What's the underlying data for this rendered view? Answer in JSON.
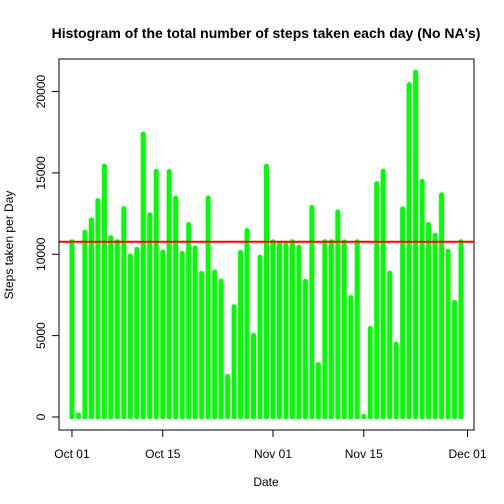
{
  "chart_data": {
    "type": "bar",
    "title": "Histogram of the total number of steps taken each day (No NA's)",
    "xlabel": "Date",
    "ylabel": "Steps taken per Day",
    "x_start": "2012-10-01",
    "x_ticks": [
      {
        "label": "Oct 01",
        "date": "2012-10-01"
      },
      {
        "label": "Oct 15",
        "date": "2012-10-15"
      },
      {
        "label": "Nov 01",
        "date": "2012-11-01"
      },
      {
        "label": "Nov 15",
        "date": "2012-11-15"
      },
      {
        "label": "Dec 01",
        "date": "2012-12-01"
      }
    ],
    "y_ticks": [
      0,
      5000,
      10000,
      15000,
      20000
    ],
    "ylim": [
      -800,
      22000
    ],
    "xlim": [
      "2012-09-29",
      "2012-12-02"
    ],
    "values": [
      10766,
      126,
      11352,
      12116,
      13294,
      15420,
      11015,
      10766,
      12811,
      9900,
      10304,
      17382,
      12426,
      15098,
      10139,
      15084,
      13452,
      10056,
      11829,
      10395,
      8821,
      13460,
      8918,
      8355,
      2492,
      6778,
      10119,
      11458,
      5018,
      9819,
      15414,
      10766,
      10600,
      10571,
      10766,
      10439,
      8334,
      12883,
      3219,
      10766,
      10766,
      12608,
      10765,
      7336,
      10766,
      41,
      5441,
      14339,
      15110,
      8841,
      4472,
      12787,
      20427,
      21194,
      14478,
      11834,
      11162,
      13646,
      10183,
      7047,
      10766
    ],
    "mean_line": 10766,
    "colors": {
      "bars": "#00ff00",
      "mean_line": "#ff0000",
      "axis": "#000000"
    },
    "grid": false,
    "legend": "none"
  }
}
